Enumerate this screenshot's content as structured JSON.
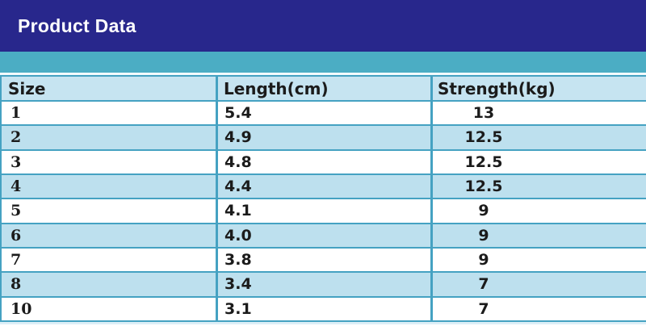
{
  "banner": {
    "title": "Product Data"
  },
  "colors": {
    "banner_bg": "#28278c",
    "banner_text": "#ffffff",
    "teal_strip": "#4badc4",
    "header_bg": "#c6e4f1",
    "row_alt_bg": "#bde0ee",
    "row_bg": "#ffffff",
    "border": "#45a2c2",
    "text": "#1b1b1b",
    "bottom_strip": "#ddeff7"
  },
  "table": {
    "columns": [
      "Size",
      "Length(cm)",
      "Strength(kg)"
    ],
    "rows": [
      {
        "size": "1",
        "length": "5.4",
        "strength": "13"
      },
      {
        "size": "2",
        "length": "4.9",
        "strength": "12.5"
      },
      {
        "size": "3",
        "length": "4.8",
        "strength": "12.5"
      },
      {
        "size": "4",
        "length": "4.4",
        "strength": "12.5"
      },
      {
        "size": "5",
        "length": "4.1",
        "strength": "9"
      },
      {
        "size": "6",
        "length": "4.0",
        "strength": "9"
      },
      {
        "size": "7",
        "length": "3.8",
        "strength": "9"
      },
      {
        "size": "8",
        "length": "3.4",
        "strength": "7"
      },
      {
        "size": "10",
        "length": "3.1",
        "strength": "7"
      }
    ]
  },
  "chart_data": {
    "type": "table",
    "title": "Product Data",
    "columns": [
      "Size",
      "Length(cm)",
      "Strength(kg)"
    ],
    "rows": [
      [
        "1",
        "5.4",
        "13"
      ],
      [
        "2",
        "4.9",
        "12.5"
      ],
      [
        "3",
        "4.8",
        "12.5"
      ],
      [
        "4",
        "4.4",
        "12.5"
      ],
      [
        "5",
        "4.1",
        "9"
      ],
      [
        "6",
        "4.0",
        "9"
      ],
      [
        "7",
        "3.8",
        "9"
      ],
      [
        "8",
        "3.4",
        "7"
      ],
      [
        "10",
        "3.1",
        "7"
      ]
    ]
  }
}
